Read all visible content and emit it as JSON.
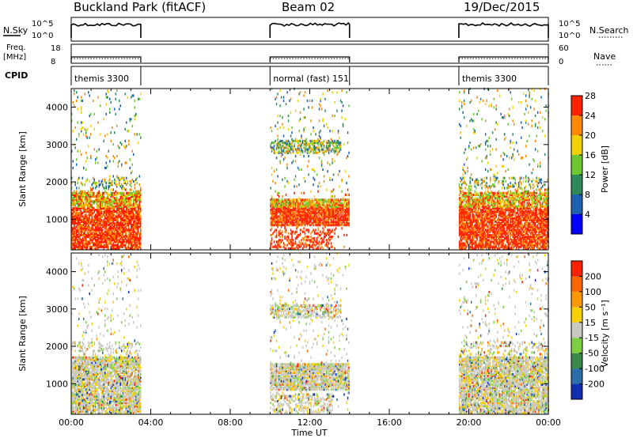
{
  "header": {
    "title": "Buckland Park (fitACF)",
    "beam": "Beam 02",
    "date": "19/Dec/2015"
  },
  "status_panels": {
    "nsky_label": "N.Sky",
    "nsky_ticks": [
      "10^5",
      "10^0"
    ],
    "nsearch_label": "N.Search",
    "nsearch_ticks": [
      "10^5",
      "10^0"
    ],
    "freq_label": "Freq.",
    "freq_unit": "[MHz]",
    "freq_ticks": [
      "18",
      "8"
    ],
    "nave_label": "Nave",
    "nave_ticks": [
      "60",
      "0"
    ],
    "cpid_label": "CPID",
    "cpid_segments": [
      {
        "name": "themis 3300",
        "start": 0.0,
        "end": 3.5
      },
      {
        "name": "normal (fast) 151",
        "start": 10.0,
        "end": 14.0
      },
      {
        "name": "themis 3300",
        "start": 19.5,
        "end": 24.0
      }
    ]
  },
  "chart_data": [
    {
      "type": "heatmap",
      "name": "power",
      "ylabel": "Slant Range [km]",
      "yticks": [
        1000,
        2000,
        3000,
        4000
      ],
      "ylim": [
        180,
        4500
      ],
      "xlim": [
        0,
        24
      ],
      "colorbar": {
        "label": "Power [dB]",
        "ticks": [
          "4",
          "8",
          "12",
          "16",
          "20",
          "24",
          "28"
        ],
        "colors": [
          "#0000ff",
          "#1f5fb0",
          "#2f8a5a",
          "#6bc830",
          "#f0d000",
          "#ff8800",
          "#ff2200"
        ]
      },
      "data_windows": [
        [
          0.0,
          3.5
        ],
        [
          10.0,
          14.0
        ],
        [
          19.5,
          24.0
        ]
      ]
    },
    {
      "type": "heatmap",
      "name": "velocity",
      "ylabel": "Slant Range [km]",
      "yticks": [
        1000,
        2000,
        3000,
        4000
      ],
      "ylim": [
        180,
        4500
      ],
      "xlim": [
        0,
        24
      ],
      "xticks": [
        "00:00",
        "04:00",
        "08:00",
        "12:00",
        "16:00",
        "20:00",
        "00:00"
      ],
      "xlabel": "Time UT",
      "colorbar": {
        "label": "Velocity [m s⁻¹]",
        "ticks": [
          "200",
          "100",
          "50",
          "15",
          "-15",
          "-50",
          "-100",
          "-200"
        ],
        "colors": [
          "#1030b0",
          "#2c6ea8",
          "#3a8a4a",
          "#7ad040",
          "#c8c8c0",
          "#f8d000",
          "#ff9900",
          "#ff6600",
          "#ff2000"
        ]
      },
      "data_windows": [
        [
          0.0,
          3.5
        ],
        [
          10.0,
          14.0
        ],
        [
          19.5,
          24.0
        ]
      ]
    }
  ]
}
